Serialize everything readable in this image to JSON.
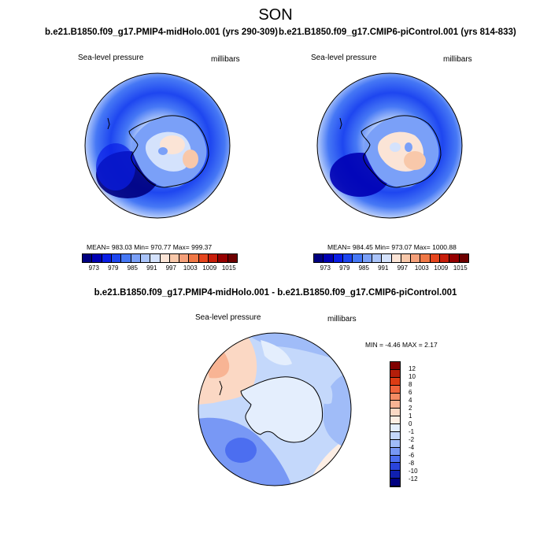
{
  "season": "SON",
  "panels": {
    "left": {
      "case_title": "b.e21.B1850.f09_g17.PMIP4-midHolo.001 (yrs 290-309)",
      "variable": "Sea-level pressure",
      "units": "millibars",
      "mean_label": "MEAN=",
      "mean": "983.03",
      "min_label": "Min=",
      "min": "970.77",
      "max_label": "Max=",
      "max": "999.37"
    },
    "right": {
      "case_title": "b.e21.B1850.f09_g17.CMIP6-piControl.001 (yrs 814-833)",
      "variable": "Sea-level pressure",
      "units": "millibars",
      "mean_label": "MEAN=",
      "mean": "984.45",
      "min_label": "Min=",
      "min": "973.07",
      "max_label": "Max=",
      "max": "1000.88"
    },
    "diff": {
      "case_title": "b.e21.B1850.f09_g17.PMIP4-midHolo.001 - b.e21.B1850.f09_g17.CMIP6-piControl.001",
      "variable": "Sea-level pressure",
      "units": "millibars",
      "min_label": "MIN =",
      "min": "-4.46",
      "max_label": "MAX =",
      "max": "2.17"
    }
  },
  "abs_colorbar": {
    "ticks": [
      "973",
      "979",
      "985",
      "991",
      "997",
      "1003",
      "1009",
      "1015"
    ],
    "colors": [
      "#000080",
      "#0000b4",
      "#0a1ee6",
      "#1e46f0",
      "#4678f5",
      "#7aa0f8",
      "#aac4fa",
      "#d4e2fc",
      "#fbe4d6",
      "#f8c8aa",
      "#f5a07a",
      "#f07846",
      "#e6461e",
      "#c81e0a",
      "#960000",
      "#6e0000"
    ]
  },
  "diff_colorbar": {
    "ticks": [
      "12",
      "10",
      "8",
      "6",
      "4",
      "2",
      "1",
      "0",
      "-1",
      "-2",
      "-4",
      "-6",
      "-8",
      "-10",
      "-12"
    ],
    "colors": [
      "#800000",
      "#b41e0a",
      "#dc3c14",
      "#f0643c",
      "#f58c64",
      "#f8b494",
      "#fbd8c4",
      "#fdeee4",
      "#e4eefd",
      "#c4d8fb",
      "#a0bcf8",
      "#7898f5",
      "#4c6ef0",
      "#2a44dc",
      "#1020b0",
      "#000080"
    ]
  },
  "colors": {
    "antarctica_high": "#f8dccc",
    "ocean_low": "#0014a0",
    "coast": "#000000"
  }
}
